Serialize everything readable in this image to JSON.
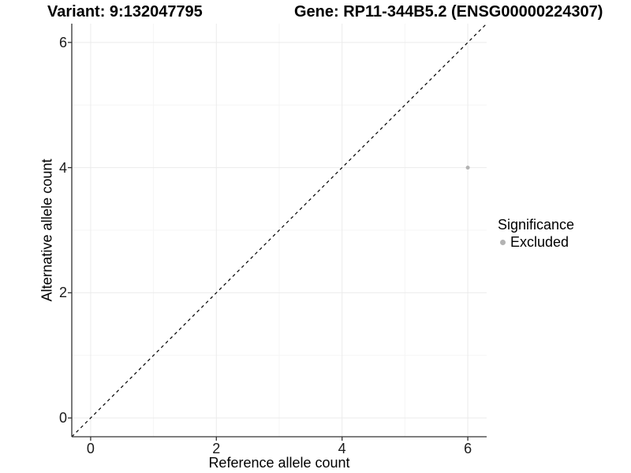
{
  "header": {
    "variant_title": "Variant: 9:132047795",
    "gene_title": "Gene: RP11-344B5.2 (ENSG00000224307)"
  },
  "legend": {
    "title": "Significance",
    "items": [
      {
        "label": "Excluded",
        "color": "#b3b3b3"
      }
    ]
  },
  "chart_data": {
    "type": "scatter",
    "title": "Variant: 9:132047795   Gene: RP11-344B5.2 (ENSG00000224307)",
    "xlabel": "Reference allele count",
    "ylabel": "Alternative allele count",
    "xlim": [
      -0.3,
      6.3
    ],
    "ylim": [
      -0.3,
      6.3
    ],
    "x_ticks": [
      0,
      2,
      4,
      6
    ],
    "y_ticks": [
      0,
      2,
      4,
      6
    ],
    "x_minor_ticks": [
      1,
      3,
      5
    ],
    "y_minor_ticks": [
      1,
      3,
      5
    ],
    "grid": true,
    "legend_position": "right",
    "series": [
      {
        "name": "Excluded",
        "color": "#b3b3b3",
        "point_radius": 2.5,
        "points": [
          {
            "x": 6,
            "y": 4
          }
        ]
      }
    ],
    "reference_line": {
      "type": "identity",
      "style": "dashed",
      "color": "#000000",
      "from": [
        -0.3,
        -0.3
      ],
      "to": [
        6.3,
        6.3
      ]
    }
  },
  "colors": {
    "background": "#ffffff",
    "grid_major": "#ebebeb",
    "grid_minor": "#f5f5f5",
    "axis": "#333333",
    "point": "#b3b3b3",
    "text": "#000000"
  }
}
